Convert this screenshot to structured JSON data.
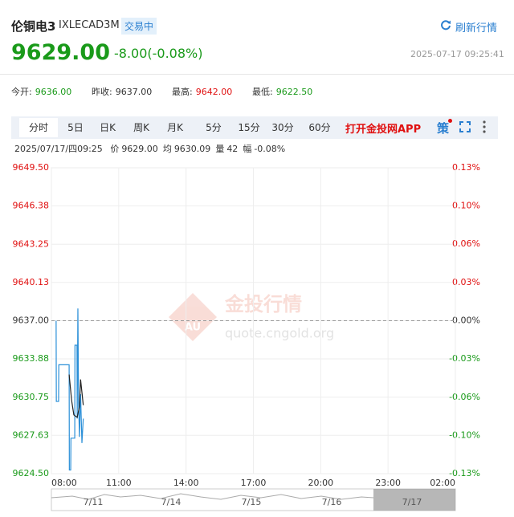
{
  "header": {
    "name": "伦铜电3",
    "code": "IXLECAD3M",
    "status": "交易中",
    "refresh": "刷新行情",
    "price": "9629.00",
    "change": "-8.00(-0.08%)",
    "time": "2025-07-17 09:25:41"
  },
  "stats": [
    {
      "label": "今开:",
      "value": "9636.00"
    },
    {
      "label": "昨收:",
      "value": "9637.00"
    },
    {
      "label": "最高:",
      "value": "9642.00"
    },
    {
      "label": "最低:",
      "value": "9622.50"
    }
  ],
  "tabs": [
    "分时",
    "5日",
    "日K",
    "周K",
    "月K",
    "5分",
    "15分",
    "30分",
    "60分"
  ],
  "app_link": "打开金投网APP",
  "strategy": "策",
  "info": {
    "datetime": "2025/07/17/四09:25",
    "items": [
      {
        "label": "价",
        "value": "9629.00"
      },
      {
        "label": "均",
        "value": "9630.09"
      },
      {
        "label": "量",
        "value": "42"
      },
      {
        "label": "幅",
        "value": "-0.08%"
      }
    ]
  },
  "watermark": {
    "title": "金投行情",
    "url": "quote.cngold.org",
    "logo": "AU"
  },
  "navigator": {
    "labels": [
      "7/11",
      "7/14",
      "7/15",
      "7/16",
      "7/17"
    ]
  },
  "chart_data": {
    "type": "line",
    "xlim": [
      8,
      26
    ],
    "xticks": [
      {
        "value": 8,
        "label": "08:00"
      },
      {
        "value": 11,
        "label": "11:00"
      },
      {
        "value": 14,
        "label": "14:00"
      },
      {
        "value": 17,
        "label": "17:00"
      },
      {
        "value": 20,
        "label": "20:00"
      },
      {
        "value": 23,
        "label": "23:00"
      },
      {
        "value": 26,
        "label": "02:00"
      }
    ],
    "ylim": [
      9624.5,
      9649.5
    ],
    "yticks": [
      {
        "value": 9649.5,
        "label": "9649.50"
      },
      {
        "value": 9646.38,
        "label": "9646.38"
      },
      {
        "value": 9643.25,
        "label": "9643.25"
      },
      {
        "value": 9640.13,
        "label": "9640.13"
      },
      {
        "value": 9637,
        "label": "9637.00"
      },
      {
        "value": 9633.88,
        "label": "9633.88"
      },
      {
        "value": 9630.75,
        "label": "9630.75"
      },
      {
        "value": 9627.63,
        "label": "9627.63"
      },
      {
        "value": 9624.5,
        "label": "9624.50"
      }
    ],
    "y2lim": [
      -0.1297,
      0.1297
    ],
    "y2ticks": [
      {
        "value": 0.1297,
        "label": "0.13%"
      },
      {
        "value": 0.0973,
        "label": "0.10%"
      },
      {
        "value": 0.0649,
        "label": "0.06%"
      },
      {
        "value": 0.0325,
        "label": "0.03%"
      },
      {
        "value": 0,
        "label": "0.00%"
      },
      {
        "value": -0.0325,
        "label": "-0.03%"
      },
      {
        "value": -0.0649,
        "label": "-0.06%"
      },
      {
        "value": -0.0973,
        "label": "-0.10%"
      },
      {
        "value": -0.1297,
        "label": "-0.13%"
      }
    ],
    "reference_line": 9637,
    "grid": true,
    "series": [
      {
        "name": "价",
        "color": "#2a8fd8",
        "x": [
          8.21,
          8.22,
          8.32,
          8.33,
          8.79,
          8.8,
          8.86,
          8.87,
          9.04,
          9.05,
          9.14,
          9.15,
          9.18,
          9.21,
          9.25,
          9.3,
          9.36,
          9.42
        ],
        "values": [
          9637.0,
          9630.4,
          9630.4,
          9633.4,
          9633.4,
          9624.8,
          9624.8,
          9627.4,
          9627.4,
          9635.0,
          9635.0,
          9629.0,
          9638.0,
          9630.5,
          9627.5,
          9631.0,
          9627.0,
          9629.0
        ]
      },
      {
        "name": "均",
        "color": "#222222",
        "x": [
          8.79,
          8.9,
          9.0,
          9.15,
          9.25,
          9.3,
          9.42
        ],
        "values": [
          9632.6,
          9630.5,
          9629.3,
          9629.1,
          9630.0,
          9632.2,
          9630.1
        ]
      }
    ]
  }
}
